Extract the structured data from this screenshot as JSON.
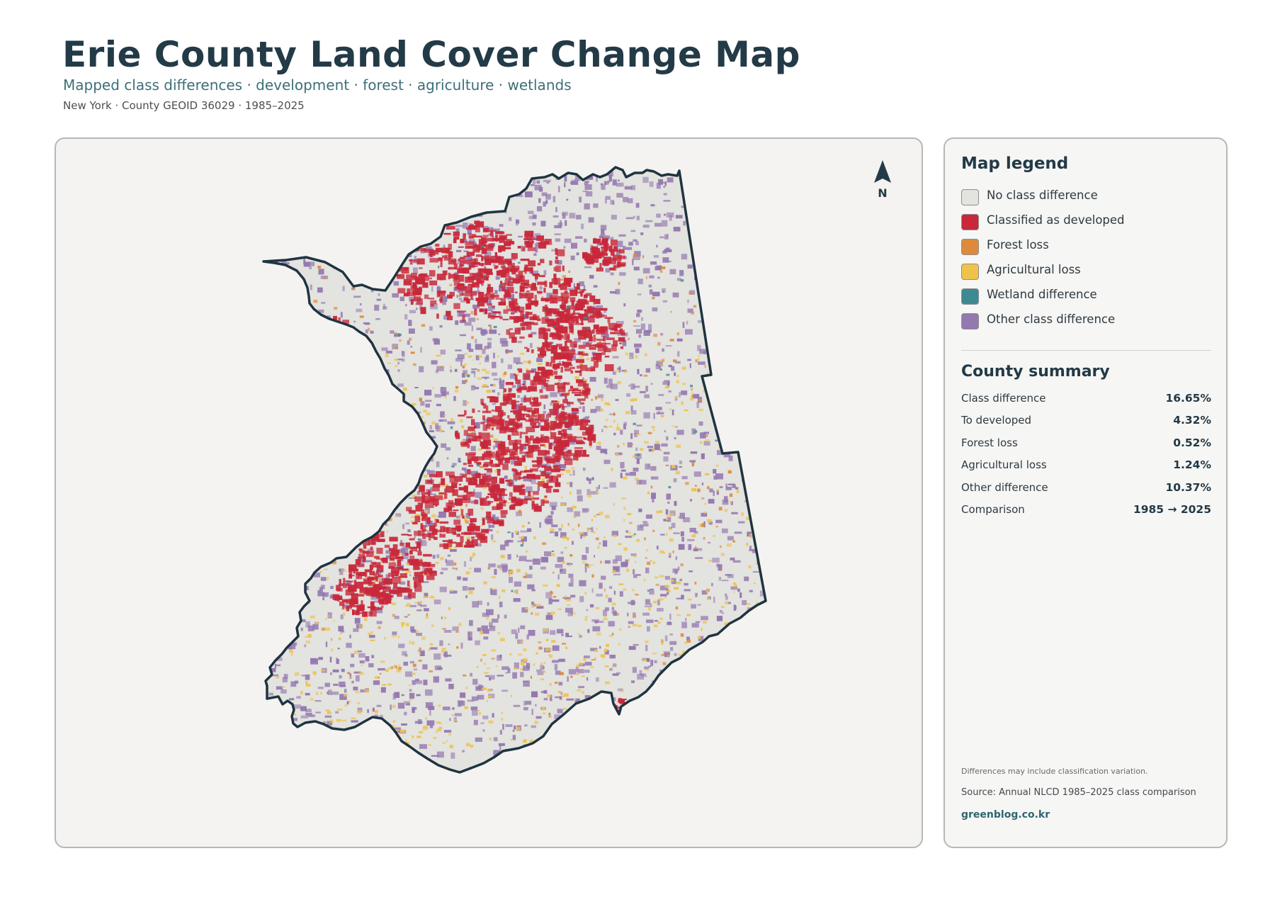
{
  "header": {
    "title": "Erie County Land Cover Change Map",
    "subtitle": "Mapped class differences · development · forest · agriculture · wetlands",
    "meta": "New York · County GEOID 36029 · 1985–2025"
  },
  "map": {
    "north_label": "N",
    "colors": {
      "background": "#f4f3f1",
      "county_fill": "#e3e3df",
      "county_outline": "#1f3440",
      "no_change": "#e3e3df",
      "developed": "#c8283a",
      "forest_loss": "#dd8a3c",
      "agricultural_loss": "#efc24c",
      "wetland": "#3f8a92",
      "other": "#9478b0"
    }
  },
  "legend": {
    "title": "Map legend",
    "items": [
      {
        "label": "No class difference",
        "color": "#e3e3df"
      },
      {
        "label": "Classified as developed",
        "color": "#c8283a"
      },
      {
        "label": "Forest loss",
        "color": "#dd8a3c"
      },
      {
        "label": "Agricultural loss",
        "color": "#efc24c"
      },
      {
        "label": "Wetland difference",
        "color": "#3f8a92"
      },
      {
        "label": "Other class difference",
        "color": "#9478b0"
      }
    ]
  },
  "summary": {
    "title": "County summary",
    "rows": [
      {
        "label": "Class difference",
        "value": "16.65%"
      },
      {
        "label": "To developed",
        "value": "4.32%"
      },
      {
        "label": "Forest loss",
        "value": "0.52%"
      },
      {
        "label": "Agricultural loss",
        "value": "1.24%"
      },
      {
        "label": "Other difference",
        "value": "10.37%"
      },
      {
        "label": "Comparison",
        "value": "1985 → 2025"
      }
    ]
  },
  "footer": {
    "note": "Differences may include classification variation.",
    "source": "Source: Annual NLCD 1985–2025 class comparison",
    "site": "greenblog.co.kr"
  }
}
